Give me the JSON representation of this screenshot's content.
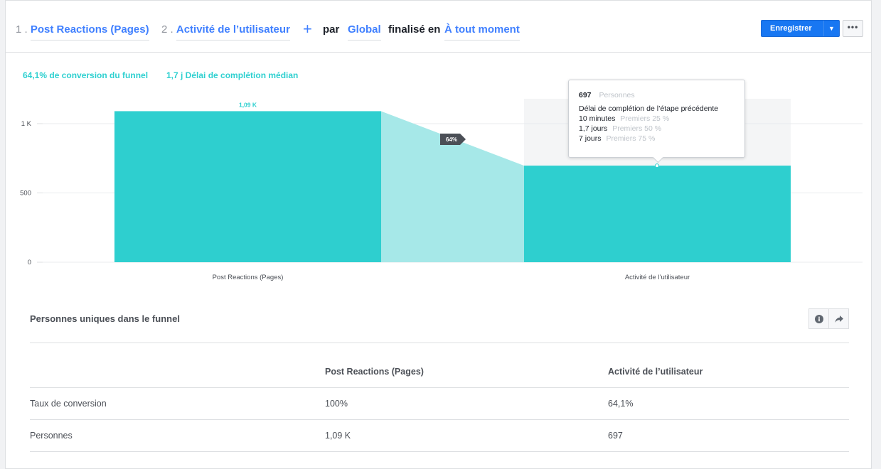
{
  "toolbar": {
    "step1_num": "1 .",
    "step1_label": "Post Reactions (Pages)",
    "step2_num": "2 .",
    "step2_label": "Activité de l’utilisateur",
    "add_icon": "plus-icon",
    "by_label": "par",
    "by_value": "Global",
    "completed_label": "finalisé en",
    "completed_value": "À tout moment",
    "save_label": "Enregistrer",
    "more_label": "•••"
  },
  "summary": {
    "conversion": "64,1% de conversion du funnel",
    "median": "1,7 j Délai de complétion médian"
  },
  "colors": {
    "accent": "#2ed0d0",
    "bar": "#2ecfcf",
    "connector": "#a6e8e8",
    "link": "#4080ff",
    "save_button": "#1877f2"
  },
  "chart_data": {
    "type": "bar",
    "categories": [
      "Post Reactions (Pages)",
      "Activité de l’utilisateur"
    ],
    "values": [
      1090,
      697
    ],
    "data_labels": [
      "1,09 K",
      ""
    ],
    "step_conversion_label": "64%",
    "yticks": [
      0,
      500,
      1000
    ],
    "ytick_labels": [
      "0",
      "500",
      "1 K"
    ],
    "ylim": [
      0,
      1100
    ],
    "grid": true,
    "highlighted_index": 1
  },
  "tooltip": {
    "count": "697",
    "count_label": "Personnes",
    "title": "Délai de complétion de l’étape précédente",
    "rows": [
      {
        "value": "10 minutes",
        "label": "Premiers 25 %"
      },
      {
        "value": "1,7 jours",
        "label": "Premiers 50 %"
      },
      {
        "value": "7 jours",
        "label": "Premiers 75 %"
      }
    ]
  },
  "table": {
    "title": "Personnes uniques dans le funnel",
    "info_icon": "info-icon",
    "share_icon": "share-icon",
    "columns": [
      "",
      "Post Reactions (Pages)",
      "Activité de l’utilisateur"
    ],
    "rows": [
      [
        "Taux de conversion",
        "100%",
        "64,1%"
      ],
      [
        "Personnes",
        "1,09 K",
        "697"
      ]
    ]
  }
}
